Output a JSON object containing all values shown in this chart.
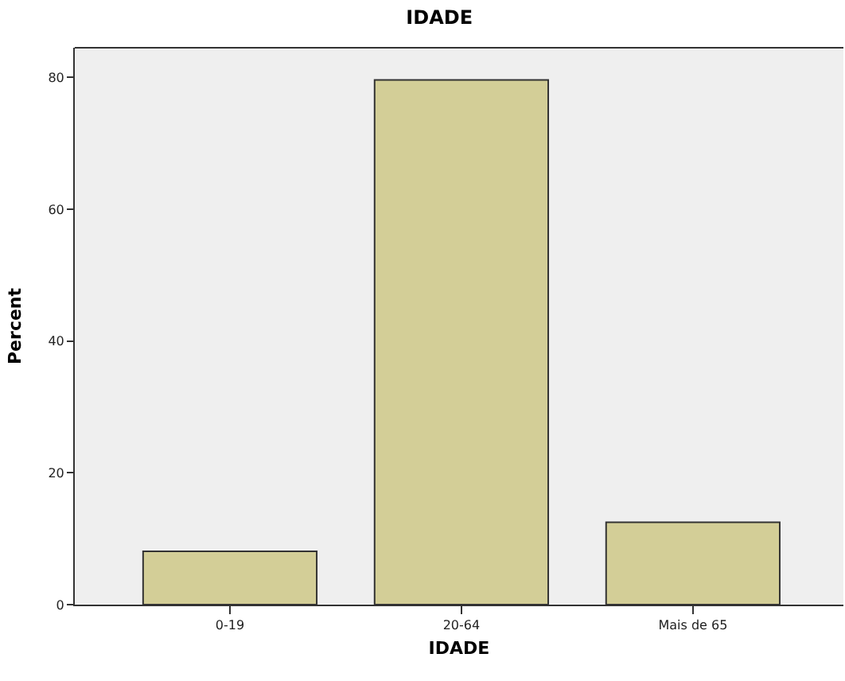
{
  "chart_data": {
    "type": "bar",
    "title": "IDADE",
    "xlabel": "IDADE",
    "ylabel": "Percent",
    "categories": [
      "0-19",
      "20-64",
      "Mais de 65"
    ],
    "values": [
      8.1,
      79.6,
      12.5
    ],
    "color": "#d3ce97",
    "ylim": [
      0,
      84.5
    ],
    "yticks": [
      0,
      20,
      40,
      60,
      80
    ],
    "grid": false,
    "legend": false
  }
}
